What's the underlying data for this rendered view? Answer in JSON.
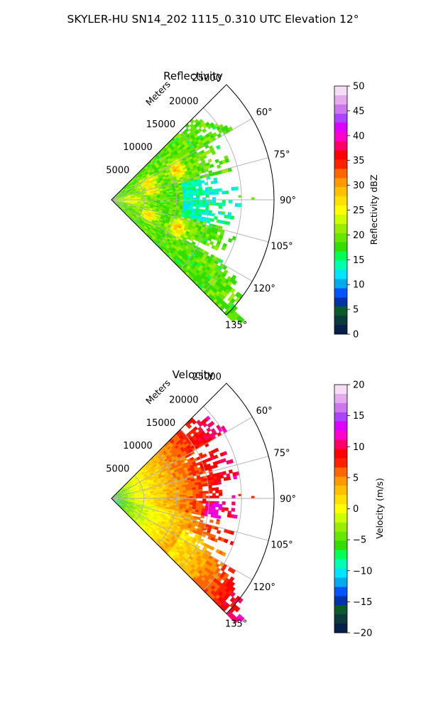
{
  "figure": {
    "suptitle": "SKYLER-HU  SN14_202  1115_0.310 UTC Elevation 12°"
  },
  "chart_data": [
    {
      "type": "heatmap",
      "projection": "polar-sector",
      "title": "Reflectivity",
      "radial_label": "Meters",
      "radial_ticks": [
        "5000",
        "10000",
        "15000",
        "20000",
        "25000"
      ],
      "radial_tick_values": [
        5000,
        10000,
        15000,
        20000,
        25000
      ],
      "rlim": [
        0,
        25000
      ],
      "angle_ticks": [
        "60°",
        "75°",
        "90°",
        "105°",
        "120°",
        "135°"
      ],
      "angle_tick_values": [
        60,
        75,
        90,
        105,
        120,
        135
      ],
      "theta_range_deg": [
        45,
        135
      ],
      "grid": true,
      "colorbar": {
        "label": "Reflectivity dBZ",
        "range": [
          0,
          50
        ],
        "ticks": [
          "0",
          "5",
          "10",
          "15",
          "20",
          "25",
          "30",
          "35",
          "40",
          "45",
          "50"
        ],
        "palette": [
          "#06204a",
          "#0a3a3a",
          "#0a5a2a",
          "#0033aa",
          "#0055ff",
          "#00aaee",
          "#00e5ff",
          "#00ffb0",
          "#00ff55",
          "#33dd00",
          "#66e600",
          "#99ee00",
          "#ccff00",
          "#ffff00",
          "#ffe000",
          "#ffc000",
          "#ff9900",
          "#ff6600",
          "#ff2200",
          "#ff0000",
          "#ff0066",
          "#ff00cc",
          "#dd00ff",
          "#aa44ff",
          "#cc77ee",
          "#e4aaee",
          "#f6ddf6"
        ]
      },
      "data_description_ranges": [
        {
          "theta_deg": [
            45,
            60
          ],
          "r_m": [
            0,
            21000
          ],
          "dominant_value_dbz": 20
        },
        {
          "theta_deg": [
            60,
            120
          ],
          "r_m": [
            0,
            20000
          ],
          "dominant_value_dbz": 18
        },
        {
          "theta_deg": [
            120,
            135
          ],
          "r_m": [
            0,
            27000
          ],
          "dominant_value_dbz": 20
        },
        {
          "theta_deg": [
            65,
            115
          ],
          "r_m": [
            5000,
            9000
          ],
          "dominant_value_dbz": 33
        }
      ]
    },
    {
      "type": "heatmap",
      "projection": "polar-sector",
      "title": "Velocity",
      "radial_label": "Meters",
      "radial_ticks": [
        "5000",
        "10000",
        "15000",
        "20000",
        "25000"
      ],
      "radial_tick_values": [
        5000,
        10000,
        15000,
        20000,
        25000
      ],
      "rlim": [
        0,
        25000
      ],
      "angle_ticks": [
        "60°",
        "75°",
        "90°",
        "105°",
        "120°",
        "135°"
      ],
      "angle_tick_values": [
        60,
        75,
        90,
        105,
        120,
        135
      ],
      "theta_range_deg": [
        45,
        135
      ],
      "grid": true,
      "colorbar": {
        "label": "Velocity (m/s)",
        "range": [
          -20,
          20
        ],
        "ticks": [
          "−20",
          "−15",
          "−10",
          "−5",
          "0",
          "5",
          "10",
          "15",
          "20"
        ],
        "palette": [
          "#06204a",
          "#0a3a3a",
          "#0a5a2a",
          "#0033aa",
          "#0055ff",
          "#00aaee",
          "#00e5ff",
          "#00ffb0",
          "#00ff55",
          "#33dd00",
          "#66e600",
          "#99ee00",
          "#ccff00",
          "#ffff00",
          "#ffe000",
          "#ffc000",
          "#ff9900",
          "#ff6600",
          "#ff2200",
          "#ff0000",
          "#ff0066",
          "#ff00cc",
          "#dd00ff",
          "#aa44ff",
          "#cc77ee",
          "#e4aaee",
          "#f6ddf6"
        ]
      },
      "data_description_ranges": [
        {
          "theta_deg": [
            45,
            135
          ],
          "r_m": [
            0,
            4000
          ],
          "dominant_value_ms": -7
        },
        {
          "theta_deg": [
            45,
            135
          ],
          "r_m": [
            4000,
            12000
          ],
          "dominant_value_ms": 2
        },
        {
          "theta_deg": [
            45,
            100
          ],
          "r_m": [
            12000,
            21000
          ],
          "dominant_value_ms": 9
        },
        {
          "theta_deg": [
            110,
            135
          ],
          "r_m": [
            12000,
            27000
          ],
          "dominant_value_ms": 3
        }
      ]
    }
  ]
}
